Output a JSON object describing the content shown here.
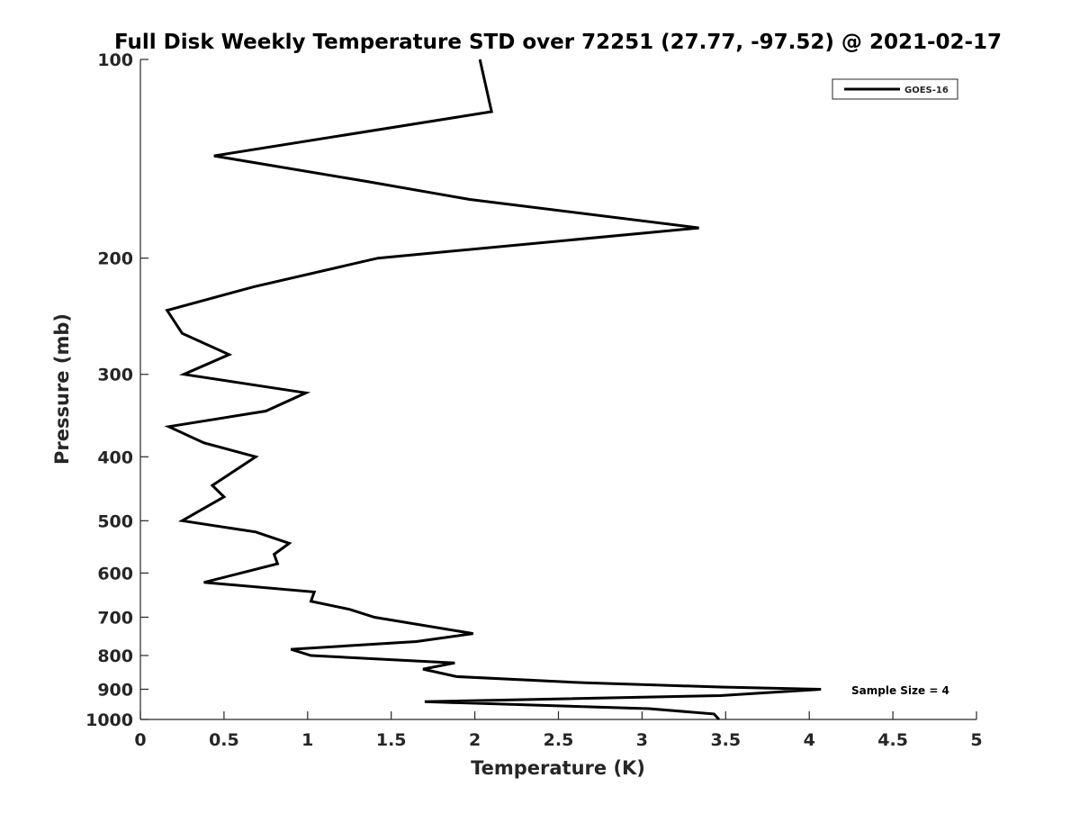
{
  "chart_data": {
    "type": "line",
    "title": "Full Disk Weekly Temperature STD over 72251 (27.77, -97.52) @ 2021-02-17",
    "xlabel": "Temperature (K)",
    "ylabel": "Pressure (mb)",
    "xlim": [
      0,
      5
    ],
    "ylim": [
      100,
      1000
    ],
    "yscale": "log",
    "yreversed": true,
    "grid": false,
    "legend_position": "top-right",
    "xticks": [
      "0",
      "0.5",
      "1",
      "1.5",
      "2",
      "2.5",
      "3",
      "3.5",
      "4",
      "4.5",
      "5"
    ],
    "yticks": [
      "100",
      "200",
      "300",
      "400",
      "500",
      "600",
      "700",
      "800",
      "900",
      "1000"
    ],
    "annotation": "Sample Size = 4",
    "series": [
      {
        "name": "GOES-16",
        "color": "#000000",
        "temperature": [
          2.03,
          2.1,
          0.44,
          1.35,
          1.97,
          3.34,
          1.42,
          0.68,
          0.16,
          0.25,
          0.53,
          0.26,
          0.99,
          0.75,
          0.17,
          0.38,
          0.69,
          0.43,
          0.5,
          0.25,
          0.69,
          0.89,
          0.8,
          0.82,
          0.38,
          1.04,
          1.02,
          1.25,
          1.4,
          1.99,
          1.65,
          0.9,
          1.02,
          1.88,
          1.69,
          1.89,
          2.66,
          3.47,
          4.07,
          3.47,
          1.7,
          3.04,
          3.43,
          3.46
        ],
        "pressure": [
          100,
          120,
          140,
          153,
          163,
          180,
          200,
          221,
          240,
          260,
          280,
          300,
          320,
          341,
          360,
          381,
          400,
          442,
          460,
          500,
          520,
          541,
          562,
          581,
          620,
          641,
          662,
          681,
          700,
          741,
          762,
          783,
          800,
          821,
          839,
          861,
          880,
          893,
          900,
          920,
          940,
          963,
          981,
          1000
        ]
      }
    ]
  }
}
